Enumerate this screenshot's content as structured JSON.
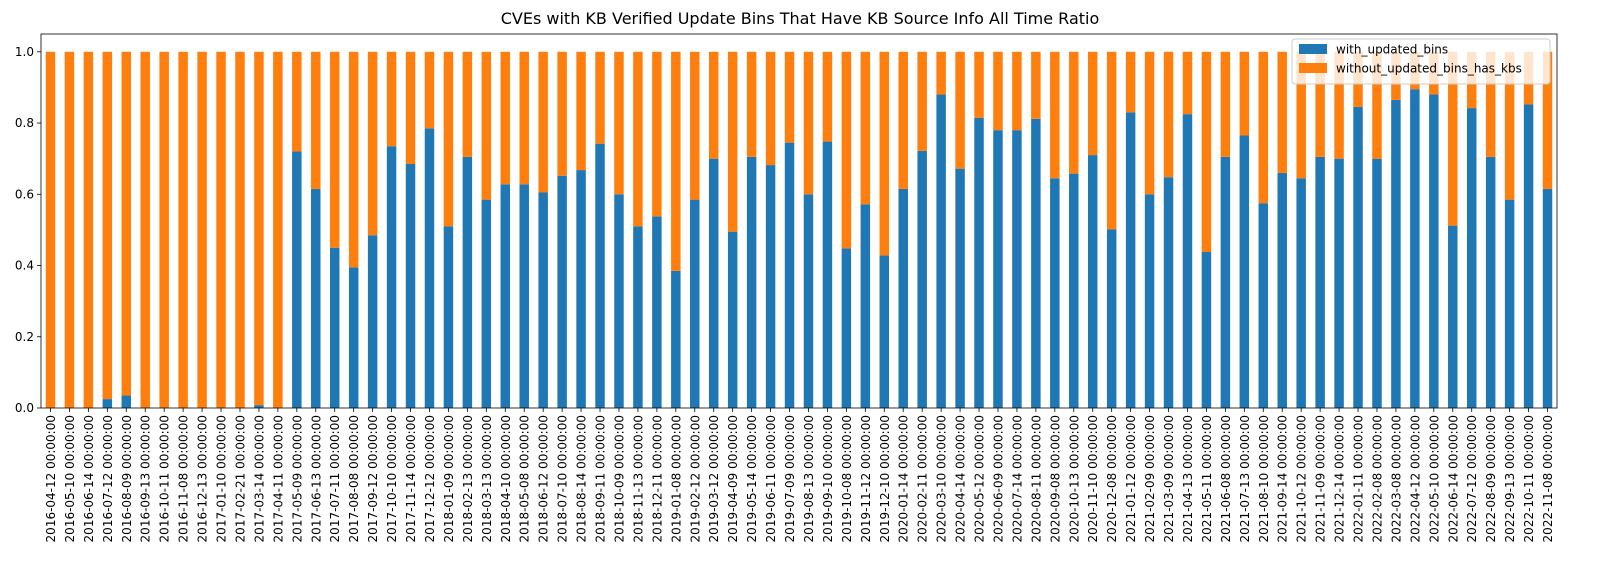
{
  "chart_data": {
    "type": "bar",
    "stacked": true,
    "title": "CVEs with KB Verified Update Bins That Have KB Source Info All Time Ratio",
    "xlabel": "",
    "ylabel": "",
    "ylim": [
      0,
      1.05
    ],
    "yticks": [
      "0.0",
      "0.2",
      "0.4",
      "0.6",
      "0.8",
      "1.0"
    ],
    "legend_position": "top-right",
    "categories": [
      "2016-04-12 00:00:00",
      "2016-05-10 00:00:00",
      "2016-06-14 00:00:00",
      "2016-07-12 00:00:00",
      "2016-08-09 00:00:00",
      "2016-09-13 00:00:00",
      "2016-10-11 00:00:00",
      "2016-11-08 00:00:00",
      "2016-12-13 00:00:00",
      "2017-01-10 00:00:00",
      "2017-02-21 00:00:00",
      "2017-03-14 00:00:00",
      "2017-04-11 00:00:00",
      "2017-05-09 00:00:00",
      "2017-06-13 00:00:00",
      "2017-07-11 00:00:00",
      "2017-08-08 00:00:00",
      "2017-09-12 00:00:00",
      "2017-10-10 00:00:00",
      "2017-11-14 00:00:00",
      "2017-12-12 00:00:00",
      "2018-01-09 00:00:00",
      "2018-02-13 00:00:00",
      "2018-03-13 00:00:00",
      "2018-04-10 00:00:00",
      "2018-05-08 00:00:00",
      "2018-06-12 00:00:00",
      "2018-07-10 00:00:00",
      "2018-08-14 00:00:00",
      "2018-09-11 00:00:00",
      "2018-10-09 00:00:00",
      "2018-11-13 00:00:00",
      "2018-12-11 00:00:00",
      "2019-01-08 00:00:00",
      "2019-02-12 00:00:00",
      "2019-03-12 00:00:00",
      "2019-04-09 00:00:00",
      "2019-05-14 00:00:00",
      "2019-06-11 00:00:00",
      "2019-07-09 00:00:00",
      "2019-08-13 00:00:00",
      "2019-09-10 00:00:00",
      "2019-10-08 00:00:00",
      "2019-11-12 00:00:00",
      "2019-12-10 00:00:00",
      "2020-01-14 00:00:00",
      "2020-02-11 00:00:00",
      "2020-03-10 00:00:00",
      "2020-04-14 00:00:00",
      "2020-05-12 00:00:00",
      "2020-06-09 00:00:00",
      "2020-07-14 00:00:00",
      "2020-08-11 00:00:00",
      "2020-09-08 00:00:00",
      "2020-10-13 00:00:00",
      "2020-11-10 00:00:00",
      "2020-12-08 00:00:00",
      "2021-01-12 00:00:00",
      "2021-02-09 00:00:00",
      "2021-03-09 00:00:00",
      "2021-04-13 00:00:00",
      "2021-05-11 00:00:00",
      "2021-06-08 00:00:00",
      "2021-07-13 00:00:00",
      "2021-08-10 00:00:00",
      "2021-09-14 00:00:00",
      "2021-10-12 00:00:00",
      "2021-11-09 00:00:00",
      "2021-12-14 00:00:00",
      "2022-01-11 00:00:00",
      "2022-02-08 00:00:00",
      "2022-03-08 00:00:00",
      "2022-04-12 00:00:00",
      "2022-05-10 00:00:00",
      "2022-06-14 00:00:00",
      "2022-07-12 00:00:00",
      "2022-08-09 00:00:00",
      "2022-09-13 00:00:00",
      "2022-10-11 00:00:00",
      "2022-11-08 00:00:00"
    ],
    "series": [
      {
        "name": "with_updated_bins",
        "color": "#1f77b4",
        "values": [
          0.0,
          0.0,
          0.0,
          0.025,
          0.035,
          0.0,
          0.0,
          0.0,
          0.0,
          0.0,
          0.0,
          0.008,
          0.0,
          0.72,
          0.615,
          0.45,
          0.395,
          0.485,
          0.735,
          0.685,
          0.785,
          0.51,
          0.705,
          0.585,
          0.628,
          0.628,
          0.605,
          0.652,
          0.668,
          0.742,
          0.6,
          0.51,
          0.538,
          0.385,
          0.585,
          0.7,
          0.495,
          0.705,
          0.682,
          0.745,
          0.6,
          0.748,
          0.448,
          0.572,
          0.428,
          0.615,
          0.722,
          0.88,
          0.672,
          0.815,
          0.78,
          0.78,
          0.812,
          0.645,
          0.658,
          0.71,
          0.502,
          0.83,
          0.6,
          0.648,
          0.825,
          0.438,
          0.705,
          0.765,
          0.575,
          0.66,
          0.645,
          0.705,
          0.7,
          0.845,
          0.7,
          0.865,
          0.895,
          0.88,
          0.512,
          0.842,
          0.705,
          0.585,
          0.852,
          0.615
        ]
      },
      {
        "name": "without_updated_bins_has_kbs",
        "color": "#ff7f0e",
        "values": [
          1.0,
          1.0,
          1.0,
          0.975,
          0.965,
          1.0,
          1.0,
          1.0,
          1.0,
          1.0,
          1.0,
          0.992,
          1.0,
          0.28,
          0.385,
          0.55,
          0.605,
          0.515,
          0.265,
          0.315,
          0.215,
          0.49,
          0.295,
          0.415,
          0.372,
          0.372,
          0.395,
          0.348,
          0.332,
          0.258,
          0.4,
          0.49,
          0.462,
          0.615,
          0.415,
          0.3,
          0.505,
          0.295,
          0.318,
          0.255,
          0.4,
          0.252,
          0.552,
          0.428,
          0.572,
          0.385,
          0.278,
          0.12,
          0.328,
          0.185,
          0.22,
          0.22,
          0.188,
          0.355,
          0.342,
          0.29,
          0.498,
          0.17,
          0.4,
          0.352,
          0.175,
          0.562,
          0.295,
          0.235,
          0.425,
          0.34,
          0.355,
          0.295,
          0.3,
          0.155,
          0.3,
          0.135,
          0.105,
          0.12,
          0.488,
          0.158,
          0.295,
          0.415,
          0.148,
          0.385
        ]
      }
    ]
  }
}
